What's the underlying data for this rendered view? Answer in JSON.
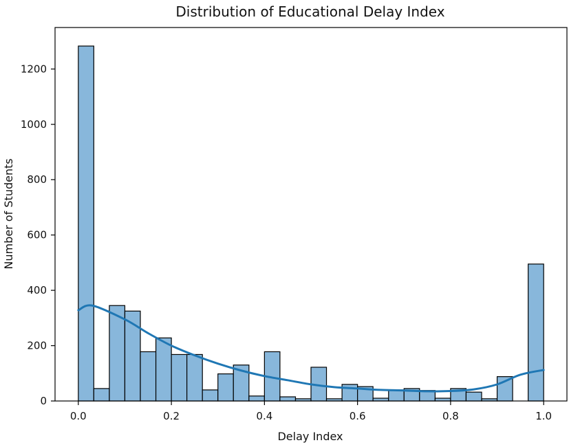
{
  "chart_data": {
    "type": "bar",
    "title": "Distribution of Educational Delay Index",
    "xlabel": "Delay Index",
    "ylabel": "Number of Students",
    "xlim": [
      -0.05,
      1.05
    ],
    "ylim": [
      0,
      1350
    ],
    "xticks": [
      "0.0",
      "0.2",
      "0.4",
      "0.6",
      "0.8",
      "1.0"
    ],
    "yticks": [
      "0",
      "200",
      "400",
      "600",
      "800",
      "1000",
      "1200"
    ],
    "grid": false,
    "bin_edges": [
      0.0,
      0.0333,
      0.0667,
      0.1,
      0.1333,
      0.1667,
      0.2,
      0.2333,
      0.2667,
      0.3,
      0.3333,
      0.3667,
      0.4,
      0.4333,
      0.4667,
      0.5,
      0.5333,
      0.5667,
      0.6,
      0.6333,
      0.6667,
      0.7,
      0.7333,
      0.7667,
      0.8,
      0.8333,
      0.8667,
      0.9,
      0.9333,
      0.9667,
      1.0
    ],
    "values": [
      1283,
      45,
      345,
      325,
      178,
      228,
      168,
      168,
      40,
      98,
      130,
      18,
      178,
      15,
      8,
      122,
      8,
      60,
      52,
      10,
      40,
      45,
      38,
      10,
      45,
      32,
      8,
      88,
      0,
      495
    ],
    "kde": {
      "x": [
        0.0,
        0.03,
        0.1,
        0.15,
        0.2,
        0.25,
        0.3,
        0.35,
        0.4,
        0.45,
        0.5,
        0.55,
        0.6,
        0.65,
        0.7,
        0.75,
        0.8,
        0.85,
        0.9,
        0.95,
        1.0
      ],
      "y": [
        328,
        345,
        295,
        245,
        200,
        165,
        135,
        110,
        90,
        75,
        60,
        50,
        45,
        40,
        38,
        35,
        36,
        42,
        60,
        95,
        112
      ]
    },
    "colors": {
      "bar_fill": "#88b7db",
      "bar_edge": "#000000",
      "kde_line": "#1f77b4"
    }
  }
}
